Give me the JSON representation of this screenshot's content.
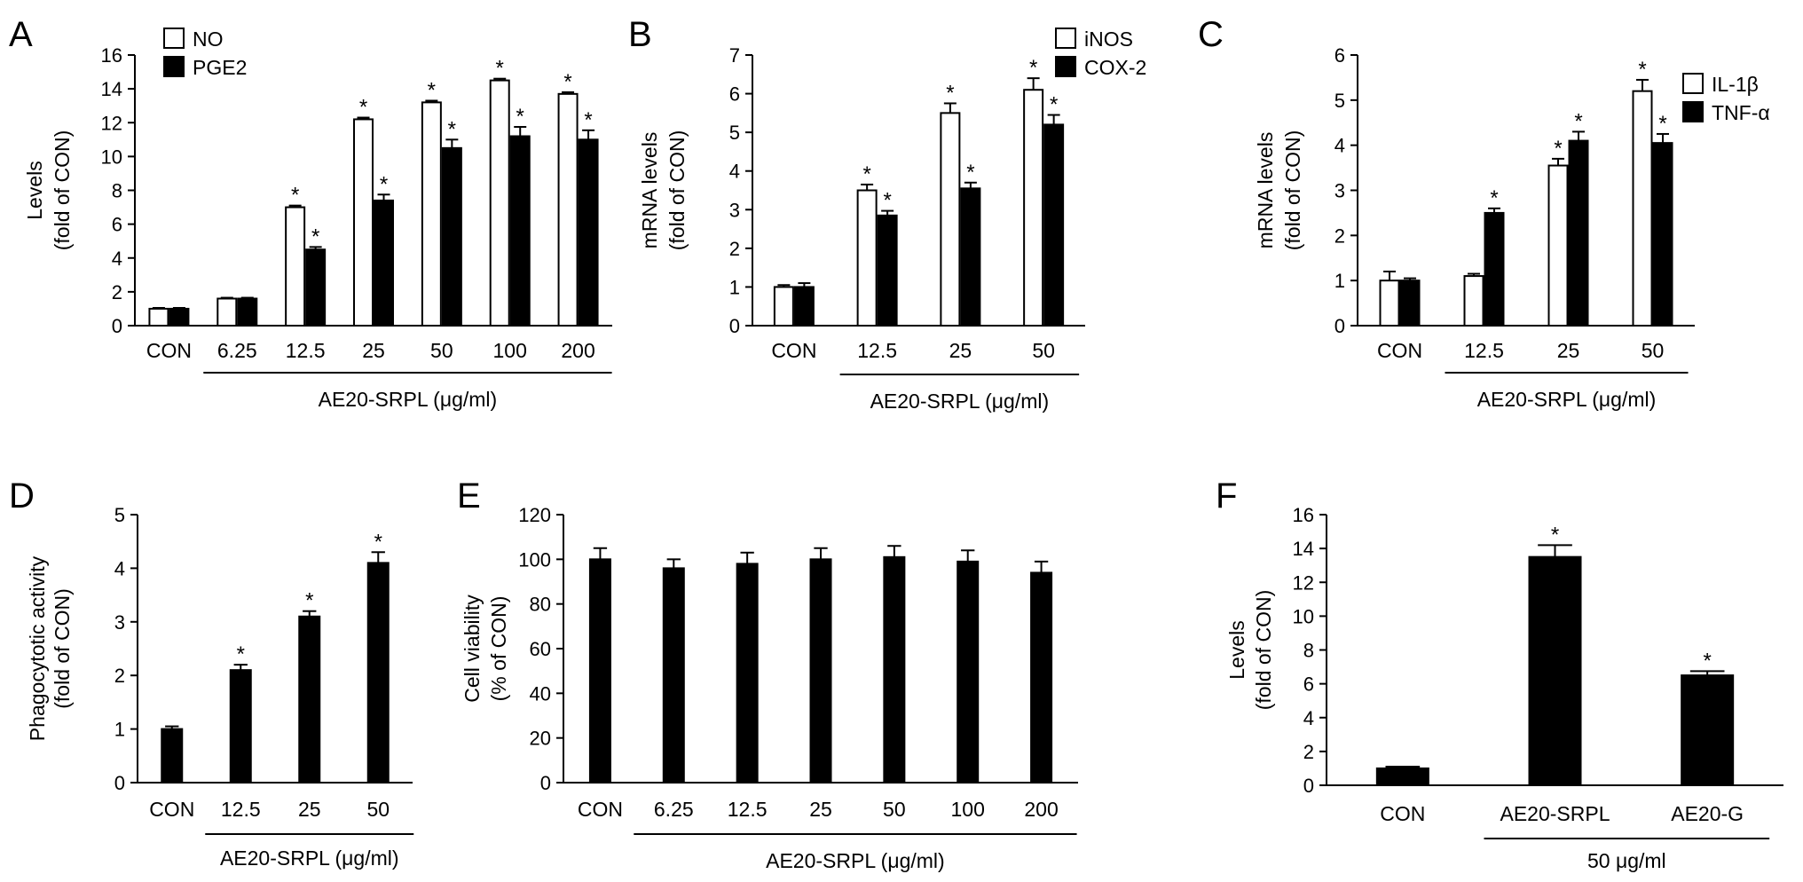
{
  "chart_data": [
    {
      "panel": "A",
      "type": "bar",
      "ylabel": [
        "Levels",
        "(fold of CON)"
      ],
      "ylim": [
        0,
        16
      ],
      "yticks": [
        0,
        2,
        4,
        6,
        8,
        10,
        12,
        14,
        16
      ],
      "categories": [
        "CON",
        "6.25",
        "12.5",
        "25",
        "50",
        "100",
        "200"
      ],
      "group_label": "AE20-SRPL (μg/ml)",
      "group_from": 1,
      "legend_position": "top-left",
      "series": [
        {
          "name": "NO",
          "color": "#ffffff",
          "values": [
            1.0,
            1.6,
            7.0,
            12.2,
            13.2,
            14.5,
            13.7
          ],
          "errors": [
            0.05,
            0.05,
            0.1,
            0.1,
            0.1,
            0.1,
            0.1
          ],
          "sig": [
            false,
            false,
            true,
            true,
            true,
            true,
            true
          ]
        },
        {
          "name": "PGE2",
          "color": "#000000",
          "values": [
            1.0,
            1.6,
            4.5,
            7.4,
            10.5,
            11.2,
            11.0
          ],
          "errors": [
            0.05,
            0.05,
            0.15,
            0.35,
            0.5,
            0.55,
            0.55
          ],
          "sig": [
            false,
            false,
            true,
            true,
            true,
            true,
            true
          ]
        }
      ]
    },
    {
      "panel": "B",
      "type": "bar",
      "ylabel": [
        "mRNA levels",
        "(fold of CON)"
      ],
      "ylim": [
        0,
        7
      ],
      "yticks": [
        0,
        1,
        2,
        3,
        4,
        5,
        6,
        7
      ],
      "categories": [
        "CON",
        "12.5",
        "25",
        "50"
      ],
      "group_label": "AE20-SRPL (μg/ml)",
      "group_from": 1,
      "legend_position": "top-right",
      "series": [
        {
          "name": "iNOS",
          "color": "#ffffff",
          "values": [
            1.0,
            3.5,
            5.5,
            6.1
          ],
          "errors": [
            0.05,
            0.15,
            0.25,
            0.3
          ],
          "sig": [
            false,
            true,
            true,
            true
          ]
        },
        {
          "name": "COX-2",
          "color": "#000000",
          "values": [
            1.0,
            2.85,
            3.55,
            5.2
          ],
          "errors": [
            0.1,
            0.12,
            0.15,
            0.25
          ],
          "sig": [
            false,
            true,
            true,
            true
          ]
        }
      ]
    },
    {
      "panel": "C",
      "type": "bar",
      "ylabel": [
        "mRNA levels",
        "(fold of CON)"
      ],
      "ylim": [
        0,
        6
      ],
      "yticks": [
        0,
        1,
        2,
        3,
        4,
        5,
        6
      ],
      "categories": [
        "CON",
        "12.5",
        "25",
        "50"
      ],
      "group_label": "AE20-SRPL (μg/ml)",
      "group_from": 1,
      "legend_position": "top-right",
      "series": [
        {
          "name": "IL-1β",
          "color": "#ffffff",
          "values": [
            1.0,
            1.1,
            3.55,
            5.2
          ],
          "errors": [
            0.2,
            0.05,
            0.15,
            0.25
          ],
          "sig": [
            false,
            false,
            true,
            true
          ]
        },
        {
          "name": "TNF-α",
          "color": "#000000",
          "values": [
            1.0,
            2.5,
            4.1,
            4.05
          ],
          "errors": [
            0.05,
            0.1,
            0.2,
            0.2
          ],
          "sig": [
            false,
            true,
            true,
            true
          ]
        }
      ]
    },
    {
      "panel": "D",
      "type": "bar",
      "ylabel": [
        "Phagocytotic activity",
        "(fold of CON)"
      ],
      "ylim": [
        0,
        5
      ],
      "yticks": [
        0,
        1,
        2,
        3,
        4,
        5
      ],
      "categories": [
        "CON",
        "12.5",
        "25",
        "50"
      ],
      "group_label": "AE20-SRPL (μg/ml)",
      "group_from": 1,
      "series": [
        {
          "name": "",
          "color": "#000000",
          "values": [
            1.0,
            2.1,
            3.1,
            4.1
          ],
          "errors": [
            0.05,
            0.1,
            0.1,
            0.2
          ],
          "sig": [
            false,
            true,
            true,
            true
          ]
        }
      ]
    },
    {
      "panel": "E",
      "type": "bar",
      "ylabel": [
        "Cell viability",
        "(% of CON)"
      ],
      "ylim": [
        0,
        120
      ],
      "yticks": [
        0,
        20,
        40,
        60,
        80,
        100,
        120
      ],
      "categories": [
        "CON",
        "6.25",
        "12.5",
        "25",
        "50",
        "100",
        "200"
      ],
      "group_label": "AE20-SRPL (μg/ml)",
      "group_from": 1,
      "series": [
        {
          "name": "",
          "color": "#000000",
          "values": [
            100,
            96,
            98,
            100,
            101,
            99,
            94
          ],
          "errors": [
            5,
            4,
            5,
            5,
            5,
            5,
            5
          ],
          "sig": [
            false,
            false,
            false,
            false,
            false,
            false,
            false
          ]
        }
      ]
    },
    {
      "panel": "F",
      "type": "bar",
      "ylabel": [
        "Levels",
        "(fold of CON)"
      ],
      "ylim": [
        0,
        16
      ],
      "yticks": [
        0,
        2,
        4,
        6,
        8,
        10,
        12,
        14,
        16
      ],
      "categories": [
        "CON",
        "AE20-SRPL",
        "AE20-G"
      ],
      "group_label": "50 μg/ml",
      "group_from": 1,
      "series": [
        {
          "name": "",
          "color": "#000000",
          "values": [
            1.0,
            13.5,
            6.5
          ],
          "errors": [
            0.1,
            0.7,
            0.25
          ],
          "sig": [
            false,
            true,
            true
          ]
        }
      ]
    }
  ]
}
